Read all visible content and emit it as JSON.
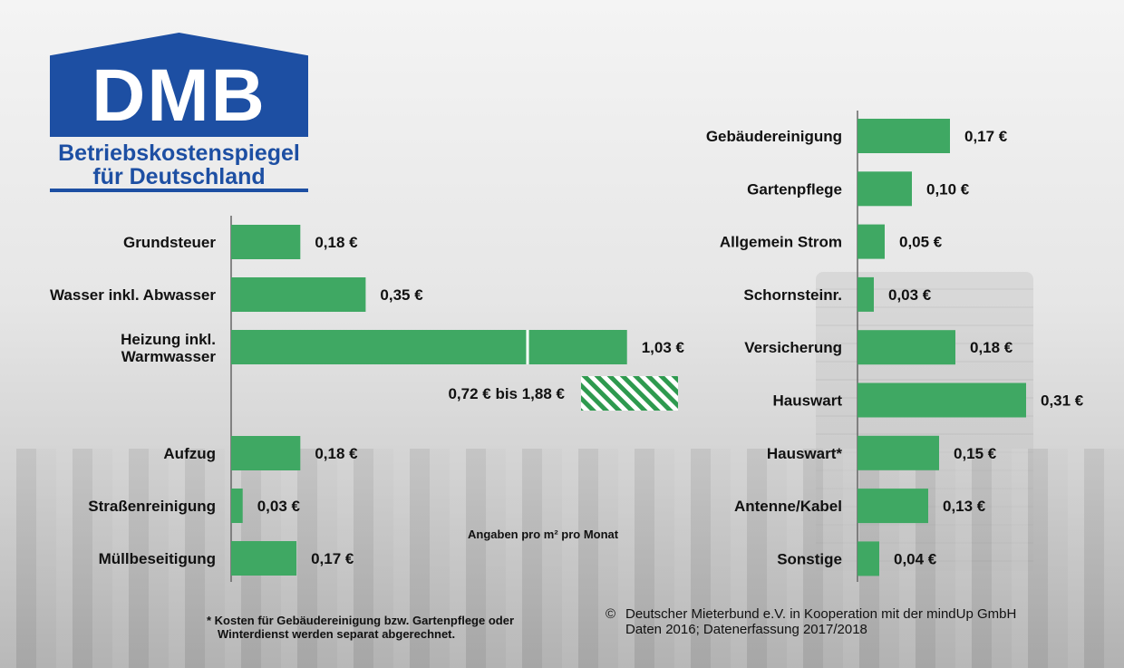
{
  "logo": {
    "title": "DMB",
    "line1": "Betriebskostenspiegel",
    "line2": "für Deutschland"
  },
  "colors": {
    "bar": "#3fa863",
    "hatch": "#2e9a4f",
    "logo": "#1d4fa3"
  },
  "chart_data": [
    {
      "type": "bar",
      "orientation": "horizontal",
      "categories": [
        "Grundsteuer",
        "Wasser inkl. Abwasser",
        "Heizung inkl. Warmwasser",
        "Aufzug",
        "Straßenreinigung",
        "Müllbeseitigung"
      ],
      "category_lines": [
        [
          "Grundsteuer"
        ],
        [
          "Wasser inkl. Abwasser"
        ],
        [
          "Heizung inkl.",
          "Warmwasser"
        ],
        [
          "Aufzug"
        ],
        [
          "Straßenreinigung"
        ],
        [
          "Müllbeseitigung"
        ]
      ],
      "values": [
        0.18,
        0.35,
        1.03,
        0.18,
        0.03,
        0.17
      ],
      "labels": [
        "0,18 €",
        "0,35 €",
        "1,03 €",
        "0,18 €",
        "0,03 €",
        "0,17 €"
      ],
      "range": {
        "category": "Heizung inkl. Warmwasser",
        "min": 0.72,
        "max": 1.88,
        "label": "0,72 € bis 1,88 €"
      }
    },
    {
      "type": "bar",
      "orientation": "horizontal",
      "categories": [
        "Gebäudereinigung",
        "Gartenpflege",
        "Allgemein Strom",
        "Schornsteinr.",
        "Versicherung",
        "Hauswart",
        "Hauswart*",
        "Antenne/Kabel",
        "Sonstige"
      ],
      "values": [
        0.17,
        0.1,
        0.05,
        0.03,
        0.18,
        0.31,
        0.15,
        0.13,
        0.04
      ],
      "labels": [
        "0,17 €",
        "0,10 €",
        "0,05 €",
        "0,03 €",
        "0,18 €",
        "0,31 €",
        "0,15 €",
        "0,13 €",
        "0,04 €"
      ]
    }
  ],
  "notes": {
    "unit": "Angaben pro m² pro Monat",
    "footnote_line1": "* Kosten für Gebäudereinigung bzw. Gartenpflege oder",
    "footnote_line2": "Winterdienst werden separat abgerechnet.",
    "copyright_symbol": "©",
    "credit_line1": "Deutscher Mieterbund e.V. in Kooperation mit der mindUp GmbH",
    "credit_line2": "Daten 2016; Datenerfassung 2017/2018"
  }
}
